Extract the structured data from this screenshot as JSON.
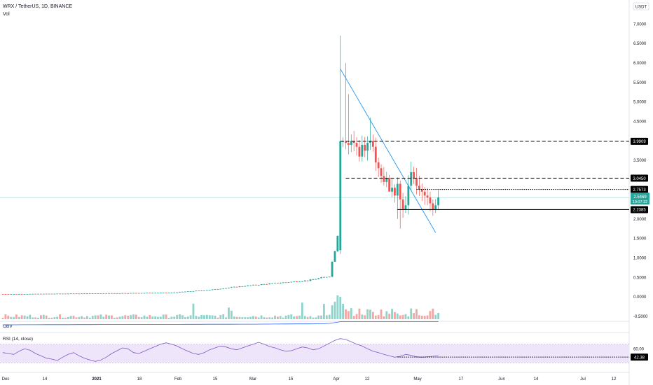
{
  "header": {
    "symbol_line": "WRX / TetherUS, 1D, BINANCE",
    "volume_label": "Vol",
    "currency": "USDT"
  },
  "colors": {
    "up": "#26a69a",
    "down": "#ef5350",
    "up_vol": "#8fd3cb",
    "down_vol": "#f4a6a4",
    "trendline": "#2196f3",
    "obv": "#2962ff",
    "rsi": "#7e57c2",
    "rsi_band": "#efe5fb"
  },
  "chart_data": [
    {
      "type": "candlestick",
      "title": "WRX / TetherUS, 1D, BINANCE",
      "ylim": [
        -0.5,
        7.0
      ],
      "y_ticks": [
        "7.0000",
        "6.5000",
        "6.0000",
        "5.5000",
        "5.0000",
        "4.5000",
        "4.0000",
        "3.5000",
        "3.0000",
        "2.5000",
        "2.0000",
        "1.5000",
        "1.0000",
        "0.5000",
        "0.0000",
        "-0.5000"
      ],
      "x_ticks": [
        "Dec",
        "14",
        "2021",
        "18",
        "Feb",
        "15",
        "Mar",
        "15",
        "Apr",
        "12",
        "May",
        "17",
        "Jun",
        "14",
        "Jul",
        "12"
      ],
      "price_levels": [
        {
          "label": "3.9909",
          "value": 3.9909,
          "style": "dashed"
        },
        {
          "label": "3.0450",
          "value": 3.045,
          "style": "dashed"
        },
        {
          "label": "2.7573",
          "value": 2.7573,
          "style": "dotted"
        },
        {
          "label": "2.2385",
          "value": 2.2385,
          "style": "solid"
        }
      ],
      "current_price": {
        "label": "2.5469",
        "countdown": "19:07:32",
        "value": 2.5469
      },
      "trendline": {
        "from": [
          "Apr 6",
          5.85
        ],
        "to": [
          "May 10",
          1.65
        ]
      },
      "ohlc_key_points": [
        {
          "date": "Dec 1",
          "close": 0.07
        },
        {
          "date": "Feb 1",
          "close": 0.1
        },
        {
          "date": "Feb 15",
          "close": 0.18
        },
        {
          "date": "Mar 1",
          "close": 0.3
        },
        {
          "date": "Mar 22",
          "close": 0.42
        },
        {
          "date": "Mar 31",
          "close": 0.55
        },
        {
          "date": "Apr 4",
          "close": 1.2
        },
        {
          "date": "Apr 5",
          "open": 1.2,
          "high": 6.7,
          "low": 1.1,
          "close": 3.99
        },
        {
          "date": "Apr 15",
          "close": 3.95
        },
        {
          "date": "Apr 20",
          "close": 3.1
        },
        {
          "date": "Apr 25",
          "close": 2.6
        },
        {
          "date": "May 1",
          "close": 2.7
        },
        {
          "date": "May 6",
          "close": 2.3
        },
        {
          "date": "May 8",
          "close": 2.55
        }
      ]
    },
    {
      "type": "line",
      "title": "OBV",
      "series": [
        {
          "name": "OBV",
          "shape": "flat-then-step-up-at-Apr"
        }
      ]
    },
    {
      "type": "line",
      "title": "RSI (14, close)",
      "ylim": [
        20,
        80
      ],
      "y_ticks": [
        "60.00",
        "40.00"
      ],
      "bands": [
        30,
        70
      ],
      "current": {
        "label": "42.38",
        "value": 42.38
      },
      "series": [
        {
          "name": "RSI",
          "values": [
            52,
            50,
            48,
            55,
            60,
            57,
            50,
            45,
            40,
            38,
            35,
            42,
            48,
            52,
            45,
            40,
            36,
            33,
            36,
            42,
            50,
            56,
            62,
            60,
            52,
            50,
            55,
            60,
            65,
            70,
            73,
            70,
            66,
            60,
            55,
            50,
            48,
            52,
            58,
            62,
            66,
            64,
            60,
            58,
            62,
            66,
            70,
            74,
            70,
            65,
            62,
            58,
            55,
            56,
            60,
            64,
            62,
            58,
            60,
            66,
            72,
            78,
            82,
            80,
            75,
            70,
            66,
            60,
            55,
            52,
            48,
            45,
            42,
            44,
            48,
            46,
            43,
            42,
            43,
            44,
            45
          ]
        }
      ]
    }
  ]
}
